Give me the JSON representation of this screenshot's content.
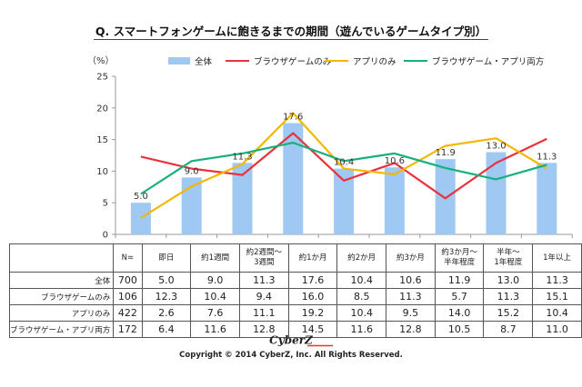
{
  "title": "Q. スマートフォンゲームに飽きるまでの期間（遊んでいるゲームタイプ別）",
  "unit_label": "（%）",
  "colors": {
    "bar": "#9fc9f3",
    "browser": "#e8323c",
    "app": "#f2b800",
    "both": "#17b07a",
    "axis": "#999999"
  },
  "legend": [
    "全体",
    "ブラウザゲームのみ",
    "アプリのみ",
    "ブラウザゲーム・アプリ両方"
  ],
  "chart_data": {
    "type": "bar",
    "categories": [
      "即日",
      "約1週間",
      "約2週間～3週間",
      "約1か月",
      "約2か月",
      "約3か月",
      "約3か月～半年程度",
      "半年～1年程度",
      "1年以上"
    ],
    "ylim": [
      0,
      25
    ],
    "yticks": [
      0,
      5,
      10,
      15,
      20,
      25
    ],
    "legend_position": "top",
    "grid": false,
    "series": [
      {
        "name": "全体",
        "type": "bar",
        "values": [
          5.0,
          9.0,
          11.3,
          17.6,
          10.4,
          10.6,
          11.9,
          13.0,
          11.3
        ]
      },
      {
        "name": "ブラウザゲームのみ",
        "type": "line",
        "values": [
          12.3,
          10.4,
          9.4,
          16.0,
          8.5,
          11.3,
          5.7,
          11.3,
          15.1
        ]
      },
      {
        "name": "アプリのみ",
        "type": "line",
        "values": [
          2.6,
          7.6,
          11.1,
          19.2,
          10.4,
          9.5,
          14.0,
          15.2,
          10.4
        ]
      },
      {
        "name": "ブラウザゲーム・アプリ両方",
        "type": "line",
        "values": [
          6.4,
          11.6,
          12.8,
          14.5,
          11.6,
          12.8,
          10.5,
          8.7,
          11.0
        ]
      }
    ]
  },
  "table": {
    "n_header": "N=",
    "headers": [
      "即日",
      "約1週間",
      "約2週間～\n3週間",
      "約1か月",
      "約2か月",
      "約3か月",
      "約3か月～\n半年程度",
      "半年～\n1年程度",
      "1年以上"
    ],
    "rows": [
      {
        "label": "全体",
        "n": "700",
        "cells": [
          "5.0",
          "9.0",
          "11.3",
          "17.6",
          "10.4",
          "10.6",
          "11.9",
          "13.0",
          "11.3"
        ]
      },
      {
        "label": "ブラウザゲームのみ",
        "n": "106",
        "cells": [
          "12.3",
          "10.4",
          "9.4",
          "16.0",
          "8.5",
          "11.3",
          "5.7",
          "11.3",
          "15.1"
        ]
      },
      {
        "label": "アプリのみ",
        "n": "422",
        "cells": [
          "2.6",
          "7.6",
          "11.1",
          "19.2",
          "10.4",
          "9.5",
          "14.0",
          "15.2",
          "10.4"
        ]
      },
      {
        "label": "ブラウザゲーム・アプリ両方",
        "n": "172",
        "cells": [
          "6.4",
          "11.6",
          "12.8",
          "14.5",
          "11.6",
          "12.8",
          "10.5",
          "8.7",
          "11.0"
        ]
      }
    ]
  },
  "logo_text": "CyberZ",
  "copyright": "Copyright © 2014 CyberZ, Inc.  All Rights Reserved."
}
